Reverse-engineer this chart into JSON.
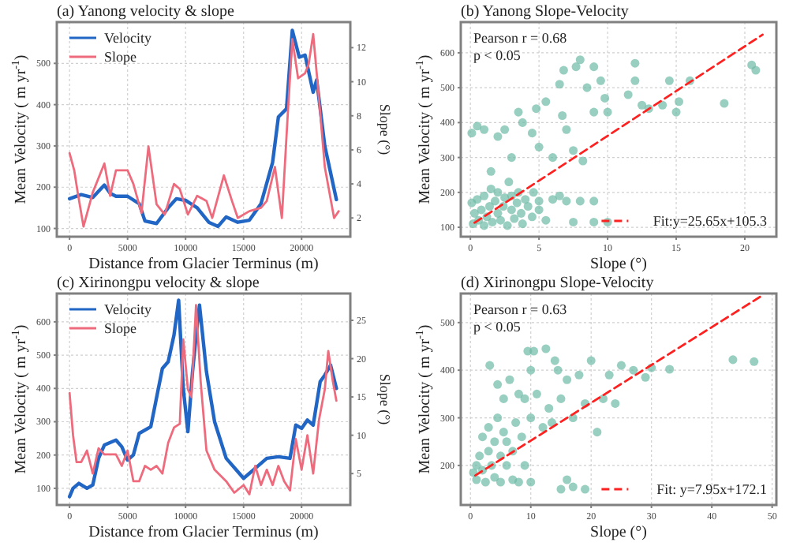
{
  "chart_data": [
    {
      "type": "line",
      "title": "(a) Yanong velocity & slope",
      "xlabel": "Distance from Glacier Terminus (m)",
      "ylabel": "Mean Velocity ( m yr$^{-1}$)",
      "y2label": "Slope (°)",
      "xlim": [
        -1100,
        24200
      ],
      "ylim": [
        80,
        600
      ],
      "y2lim": [
        0.9,
        13.5
      ],
      "xticks": [
        0,
        5000,
        10000,
        15000,
        20000
      ],
      "yticks": [
        100,
        200,
        300,
        400,
        500
      ],
      "y2ticks": [
        2,
        4,
        6,
        8,
        10,
        12
      ],
      "grid": true,
      "legend": "top left",
      "series": [
        {
          "name": "Velocity",
          "color": "#2166c4",
          "x": [
            0,
            1000,
            2000,
            3000,
            3500,
            4000,
            5000,
            6000,
            6500,
            7500,
            8500,
            9200,
            10000,
            11000,
            12000,
            12800,
            13500,
            14500,
            15500,
            16500,
            17500,
            18000,
            18700,
            19200,
            19800,
            20300,
            21000,
            21300,
            22000,
            23000
          ],
          "values": [
            172,
            182,
            175,
            205,
            185,
            178,
            178,
            160,
            118,
            112,
            150,
            172,
            168,
            150,
            115,
            105,
            128,
            115,
            120,
            160,
            260,
            370,
            390,
            580,
            515,
            520,
            430,
            460,
            300,
            170
          ]
        },
        {
          "name": "Slope",
          "color": "#ee6b7d",
          "axis": "y2",
          "x": [
            0,
            400,
            700,
            1200,
            2000,
            3000,
            3500,
            4000,
            5000,
            5500,
            6200,
            6800,
            7500,
            8200,
            9000,
            9500,
            10200,
            11000,
            11800,
            12300,
            13300,
            14000,
            14500,
            15500,
            16500,
            17000,
            17700,
            18300,
            18800,
            19200,
            19700,
            20300,
            20600,
            21000,
            21500,
            22000,
            22800,
            23200
          ],
          "values": [
            5.8,
            4.8,
            3.5,
            1.5,
            3.5,
            5.2,
            3.3,
            4.8,
            4.8,
            4.0,
            2.3,
            6.2,
            2.8,
            2.2,
            4.0,
            3.7,
            2.2,
            3.3,
            3.0,
            2.0,
            4.5,
            3.0,
            2.0,
            2.4,
            2.6,
            3.0,
            5.0,
            2.0,
            8,
            12.5,
            10.2,
            10.5,
            11,
            12.8,
            9,
            5,
            2.0,
            2.4
          ]
        }
      ]
    },
    {
      "type": "scatter",
      "title": "(b) Yanong Slope-Velocity",
      "xlabel": "Slope (°)",
      "ylabel": "Mean Velocity ( m yr$^{-1}$)",
      "xlim": [
        -0.7,
        22.3
      ],
      "ylim": [
        73,
        688
      ],
      "xticks": [
        0,
        5,
        10,
        15,
        20
      ],
      "yticks": [
        100,
        200,
        300,
        400,
        500,
        600
      ],
      "grid": true,
      "legend": "bottom right",
      "annotations": [
        "Pearson r = 0.68",
        "p < 0.05"
      ],
      "series": [
        {
          "marker": "circle",
          "color": "#6dbaa5",
          "x": [
            0.1,
            0.2,
            0.3,
            0.5,
            0.6,
            0.8,
            1,
            1,
            1.2,
            1.4,
            1.5,
            1.6,
            1.8,
            2,
            2,
            2.2,
            2.4,
            2.5,
            2.7,
            2.8,
            3,
            3,
            3.2,
            3.4,
            3.5,
            3.7,
            3.8,
            4,
            4.2,
            4.5,
            4.6,
            5,
            5,
            5.5,
            6,
            6.5,
            7,
            7.5,
            8,
            9,
            9,
            10,
            0.1,
            0.5,
            1,
            1.5,
            2,
            2.5,
            3,
            3.5,
            3.8,
            4.5,
            4.8,
            5,
            5.5,
            6,
            6.5,
            6.7,
            6.8,
            7,
            7.5,
            7.7,
            8,
            8.2,
            8.5,
            9,
            9,
            9.5,
            9.8,
            10,
            11.5,
            12,
            12,
            12.5,
            13,
            14,
            14.5,
            15,
            15.2,
            16,
            18.5,
            20.5,
            20.8
          ],
          "values": [
            170,
            110,
            140,
            180,
            120,
            150,
            105,
            190,
            130,
            160,
            210,
            115,
            175,
            140,
            200,
            120,
            160,
            185,
            105,
            230,
            150,
            190,
            125,
            170,
            200,
            140,
            110,
            180,
            160,
            130,
            200,
            150,
            175,
            120,
            180,
            190,
            175,
            115,
            175,
            175,
            115,
            115,
            370,
            390,
            380,
            260,
            360,
            380,
            300,
            430,
            400,
            370,
            440,
            330,
            460,
            300,
            510,
            420,
            550,
            380,
            320,
            560,
            580,
            290,
            500,
            560,
            430,
            520,
            470,
            430,
            480,
            570,
            520,
            450,
            440,
            450,
            520,
            430,
            460,
            520,
            455,
            565,
            550
          ]
        },
        {
          "type": "line",
          "name": "Fit:y=25.65x+105.3",
          "color": "#ff2020",
          "line_style": "dashed",
          "x": [
            0.3,
            21.3
          ],
          "values": [
            113,
            652
          ]
        }
      ]
    },
    {
      "type": "line",
      "title": "(c) Xirinongpu velocity & slope",
      "xlabel": "Distance from Glacier Terminus (m)",
      "ylabel": "Mean Velocity ( m yr$^{-1}$)",
      "y2label": "Slope (°)",
      "xlim": [
        -1100,
        24200
      ],
      "ylim": [
        50,
        685
      ],
      "y2lim": [
        0.9,
        28.5
      ],
      "xticks": [
        0,
        5000,
        10000,
        15000,
        20000
      ],
      "yticks": [
        100,
        200,
        300,
        400,
        500,
        600
      ],
      "y2ticks": [
        5,
        10,
        15,
        20,
        25
      ],
      "grid": true,
      "legend": "top left",
      "series": [
        {
          "name": "Velocity",
          "color": "#2166c4",
          "x": [
            0,
            300,
            800,
            1500,
            2000,
            2500,
            3000,
            4000,
            4500,
            5000,
            5500,
            6000,
            7000,
            8000,
            8500,
            9000,
            9400,
            9800,
            10200,
            10600,
            11000,
            11200,
            11800,
            12500,
            13500,
            14500,
            15000,
            16000,
            17000,
            18000,
            19000,
            19500,
            20000,
            20500,
            21000,
            21600,
            22000,
            22500,
            23000
          ],
          "values": [
            75,
            100,
            115,
            100,
            110,
            190,
            230,
            245,
            225,
            185,
            200,
            265,
            285,
            460,
            480,
            560,
            665,
            400,
            270,
            450,
            590,
            650,
            450,
            300,
            190,
            150,
            130,
            160,
            190,
            195,
            190,
            290,
            280,
            305,
            290,
            420,
            440,
            470,
            400
          ]
        },
        {
          "name": "Slope",
          "color": "#ee6b7d",
          "axis": "y2",
          "x": [
            0,
            300,
            600,
            1000,
            1500,
            2000,
            2500,
            3000,
            4000,
            4500,
            5000,
            5500,
            6000,
            6500,
            7000,
            7500,
            8000,
            8500,
            9000,
            9500,
            9800,
            10200,
            10500,
            10900,
            11300,
            11800,
            12500,
            13500,
            14200,
            15000,
            15500,
            16000,
            16500,
            17000,
            17500,
            18000,
            18500,
            19000,
            19500,
            20000,
            20500,
            21000,
            21500,
            22000,
            22300,
            22700,
            23000
          ],
          "values": [
            15.5,
            10,
            6.5,
            6.5,
            8,
            5,
            8.3,
            7.5,
            7.5,
            6,
            8,
            4,
            4,
            6,
            5.5,
            6,
            5,
            9,
            11,
            11.5,
            22.5,
            16,
            15,
            27,
            17,
            8,
            5.5,
            4,
            2.5,
            3.5,
            2.3,
            6,
            3.5,
            5.5,
            3.5,
            6,
            4,
            2.8,
            9.5,
            5.5,
            10,
            5,
            12,
            16,
            21,
            17,
            14.5
          ]
        }
      ]
    },
    {
      "type": "scatter",
      "title": "(d) Xirinongpu Slope-Velocity",
      "xlabel": "Slope (°)",
      "ylabel": "Mean Velocity ( m yr$^{-1}$)",
      "xlim": [
        -1.6,
        50.7
      ],
      "ylim": [
        117,
        561
      ],
      "xticks": [
        0,
        10,
        20,
        30,
        40,
        50
      ],
      "yticks": [
        200,
        300,
        400,
        500
      ],
      "grid": true,
      "legend": "bottom right",
      "annotations": [
        "Pearson r = 0.63",
        "p < 0.05"
      ],
      "series": [
        {
          "marker": "circle",
          "color": "#6dbaa5",
          "x": [
            0.5,
            1,
            1,
            1.5,
            2,
            2,
            2.5,
            3,
            3,
            3.2,
            3.5,
            4,
            4,
            4.5,
            4.5,
            5,
            5,
            5.5,
            5.5,
            6,
            6,
            6.5,
            7,
            7,
            7.5,
            8,
            8,
            8.5,
            9,
            9,
            9.5,
            10,
            10,
            10,
            10.5,
            11,
            12,
            12.5,
            13,
            13.5,
            14,
            14.5,
            15,
            15,
            16,
            16,
            17,
            17,
            18,
            19,
            19,
            20,
            21,
            22,
            23,
            24,
            25,
            27,
            29,
            30,
            33,
            43.5,
            47
          ],
          "values": [
            185,
            200,
            170,
            220,
            190,
            260,
            165,
            230,
            280,
            410,
            200,
            250,
            175,
            300,
            370,
            220,
            165,
            270,
            340,
            200,
            250,
            380,
            170,
            230,
            290,
            350,
            165,
            260,
            340,
            200,
            440,
            165,
            300,
            400,
            440,
            350,
            280,
            445,
            320,
            290,
            420,
            400,
            150,
            340,
            170,
            380,
            155,
            300,
            390,
            150,
            330,
            420,
            270,
            340,
            390,
            330,
            410,
            400,
            385,
            405,
            402,
            422,
            418
          ]
        },
        {
          "type": "line",
          "name": "Fit: y=7.95x+172.1",
          "color": "#ff2020",
          "line_style": "dashed",
          "x": [
            0.8,
            48
          ],
          "values": [
            179,
            554
          ]
        }
      ]
    }
  ]
}
